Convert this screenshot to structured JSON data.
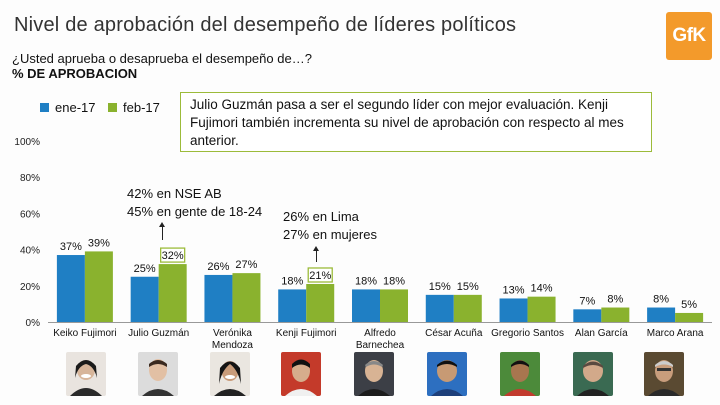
{
  "header": {
    "title": "Nivel de aprobación del desempeño de líderes políticos",
    "question": "¿Usted aprueba o desaprueba el desempeño de…?",
    "metric": "% DE APROBACION",
    "logo_text": "GfK"
  },
  "note": {
    "text": "Julio Guzmán pasa a ser el segundo líder con mejor evaluación. Kenji Fujimori también incrementa su nivel de aprobación con respecto al mes anterior."
  },
  "annotations": [
    {
      "lines": [
        "42% en NSE AB",
        "45% en gente de 18-24"
      ],
      "target": "Julio Guzmán"
    },
    {
      "lines": [
        "26% en Lima",
        "27% en mujeres"
      ],
      "target": "Kenji Fujimori"
    }
  ],
  "colors": {
    "series1": "#1f7fc4",
    "series2": "#8ab22e",
    "highlight_border": "#9cbb3a",
    "logo": "#f39a2b"
  },
  "chart_data": {
    "type": "bar",
    "categories": [
      "Keiko Fujimori",
      "Julio Guzmán",
      "Verónika Mendoza",
      "Kenji Fujimori",
      "Alfredo Barnechea",
      "César Acuña",
      "Gregorio Santos",
      "Alan García",
      "Marco Arana"
    ],
    "series": [
      {
        "name": "ene-17",
        "values": [
          37,
          25,
          26,
          18,
          18,
          15,
          13,
          7,
          8
        ]
      },
      {
        "name": "feb-17",
        "values": [
          39,
          32,
          27,
          21,
          18,
          15,
          14,
          8,
          5
        ]
      }
    ],
    "value_labels": [
      [
        "37%",
        "25%",
        "26%",
        "18%",
        "18%",
        "15%",
        "13%",
        "7%",
        "8%"
      ],
      [
        "39%",
        "32%",
        "27%",
        "21%",
        "18%",
        "15%",
        "14%",
        "8%",
        "5%"
      ]
    ],
    "highlighted": [
      [
        1,
        1
      ],
      [
        3,
        1
      ]
    ],
    "yticks": [
      0,
      20,
      40,
      60,
      80,
      100
    ],
    "ytick_labels": [
      "0%",
      "20%",
      "40%",
      "60%",
      "80%",
      "100%"
    ],
    "ylim": [
      0,
      100
    ],
    "legend_position": "top-left",
    "grid": false
  }
}
